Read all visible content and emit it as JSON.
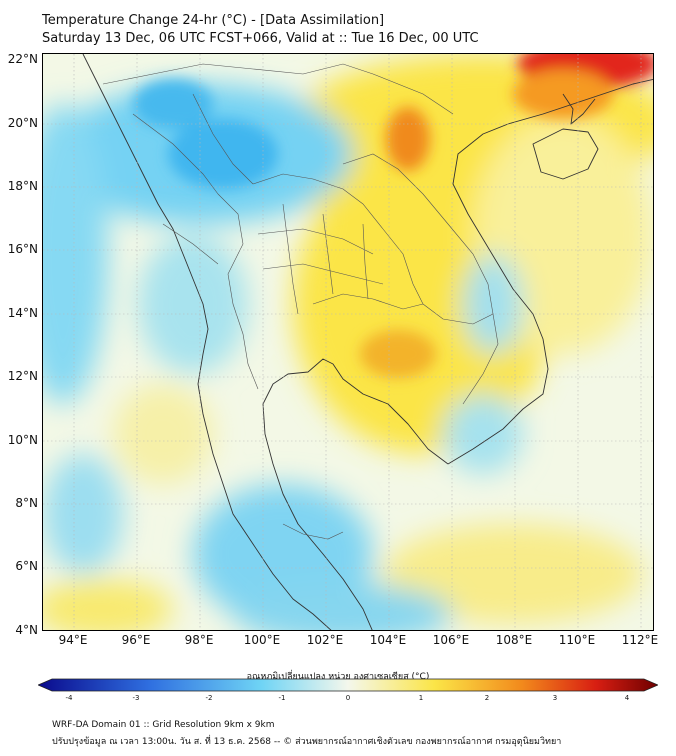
{
  "title": {
    "line1": "Temperature Change 24-hr (°C) - [Data Assimilation]",
    "line2": "Saturday 13 Dec, 06 UTC FCST+066, Valid at :: Tue 16 Dec, 00 UTC"
  },
  "map": {
    "lat_labels": [
      "22°N",
      "20°N",
      "18°N",
      "16°N",
      "14°N",
      "12°N",
      "10°N",
      "8°N",
      "6°N",
      "4°N"
    ],
    "lon_labels": [
      "94°E",
      "96°E",
      "98°E",
      "100°E",
      "102°E",
      "104°E",
      "106°E",
      "108°E",
      "110°E",
      "112°E"
    ]
  },
  "colorbar": {
    "title": "อุณหภูมิเปลี่ยนแปลง หน่วย องศาเซลเซียส (°C)",
    "min": -4,
    "max": 4,
    "labels": [
      "-4",
      "-3",
      "-2",
      "-1",
      "0",
      "1",
      "2",
      "3",
      "4"
    ]
  },
  "footer": {
    "line1": "WRF-DA Domain 01 :: Grid Resolution 9km x 9km",
    "line2": "ปรับปรุงข้อมูล ณ เวลา 13:00น. วัน ส. ที่ 13 ธ.ค. 2568 -- © ส่วนพยากรณ์อากาศเชิงตัวเลข กองพยากรณ์อากาศ กรมอุตุนิยมวิทยา"
  },
  "colors": {
    "cold_dark": "#0a0a8c",
    "cold": "#2f6fe0",
    "cyan": "#6fd4f5",
    "neutral": "#f4f7ec",
    "warm_yellow": "#fbe547",
    "warm_orange": "#f28a1c",
    "hot_red": "#d81e12",
    "hot_dark": "#6e0000"
  }
}
